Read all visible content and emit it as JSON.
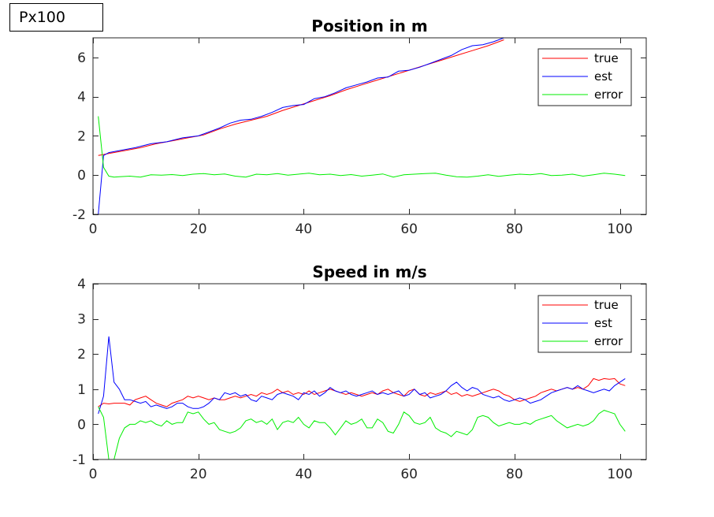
{
  "badge": "Px100",
  "colors": {
    "true": "#ff0000",
    "est": "#0000ff",
    "error": "#00ee00"
  },
  "chart_data": [
    {
      "type": "line",
      "title": "Position in m",
      "xlim": [
        0,
        105
      ],
      "ylim": [
        -2,
        7
      ],
      "xticks": [
        0,
        20,
        40,
        60,
        80,
        100
      ],
      "yticks": [
        -2,
        0,
        2,
        4,
        6
      ],
      "legend": "top-right",
      "series": [
        {
          "name": "true",
          "color": "#ff0000",
          "x": [
            1,
            3,
            6,
            9,
            12,
            15,
            18,
            21,
            24,
            27,
            30,
            33,
            36,
            39,
            42,
            45,
            48,
            51,
            54,
            57,
            60,
            63,
            66,
            69,
            72,
            75,
            78
          ],
          "y": [
            1.0,
            1.1,
            1.25,
            1.4,
            1.6,
            1.75,
            1.9,
            2.05,
            2.35,
            2.6,
            2.8,
            3.0,
            3.3,
            3.55,
            3.8,
            4.05,
            4.35,
            4.6,
            4.85,
            5.1,
            5.35,
            5.6,
            5.85,
            6.1,
            6.35,
            6.6,
            6.9
          ]
        },
        {
          "name": "est",
          "color": "#0000ff",
          "x": [
            1,
            2,
            3,
            5,
            8,
            11,
            14,
            17,
            20,
            22,
            24,
            26,
            28,
            30,
            32,
            34,
            36,
            38,
            40,
            42,
            44,
            46,
            48,
            50,
            52,
            54,
            56,
            58,
            60,
            62,
            64,
            66,
            68,
            70,
            72,
            74,
            76,
            78
          ],
          "y": [
            -2.0,
            1.0,
            1.15,
            1.25,
            1.4,
            1.6,
            1.7,
            1.9,
            2.0,
            2.2,
            2.4,
            2.65,
            2.8,
            2.85,
            3.0,
            3.2,
            3.45,
            3.55,
            3.6,
            3.9,
            4.0,
            4.2,
            4.45,
            4.6,
            4.75,
            4.95,
            5.0,
            5.3,
            5.35,
            5.5,
            5.7,
            5.9,
            6.1,
            6.4,
            6.6,
            6.65,
            6.8,
            7.0
          ]
        },
        {
          "name": "error",
          "color": "#00ee00",
          "x": [
            1,
            2,
            3,
            4,
            5,
            7,
            9,
            11,
            13,
            15,
            17,
            19,
            21,
            23,
            25,
            27,
            29,
            31,
            33,
            35,
            37,
            39,
            41,
            43,
            45,
            47,
            49,
            51,
            53,
            55,
            57,
            59,
            61,
            63,
            65,
            67,
            69,
            71,
            73,
            75,
            77,
            79,
            81,
            83,
            85,
            87,
            89,
            91,
            93,
            95,
            97,
            99,
            101
          ],
          "y": [
            3.0,
            0.4,
            -0.05,
            -0.1,
            -0.08,
            -0.05,
            -0.1,
            0.02,
            0.0,
            0.03,
            -0.02,
            0.05,
            0.08,
            0.02,
            0.06,
            -0.05,
            -0.1,
            0.05,
            0.02,
            0.08,
            0.0,
            0.05,
            0.1,
            0.02,
            0.05,
            -0.02,
            0.03,
            -0.05,
            0.0,
            0.06,
            -0.1,
            0.02,
            0.05,
            0.08,
            0.1,
            0.0,
            -0.08,
            -0.1,
            -0.05,
            0.02,
            -0.06,
            0.0,
            0.05,
            0.02,
            0.08,
            -0.02,
            0.0,
            0.05,
            -0.05,
            0.02,
            0.1,
            0.05,
            -0.02
          ]
        }
      ]
    },
    {
      "type": "line",
      "title": "Speed in m/s",
      "xlim": [
        0,
        105
      ],
      "ylim": [
        -1,
        4
      ],
      "xticks": [
        0,
        20,
        40,
        60,
        80,
        100
      ],
      "yticks": [
        -1,
        0,
        1,
        2,
        3,
        4
      ],
      "legend": "top-right",
      "series": [
        {
          "name": "true",
          "color": "#ff0000",
          "x": [
            1,
            2,
            3,
            4,
            5,
            6,
            7,
            8,
            9,
            10,
            11,
            12,
            13,
            14,
            15,
            16,
            17,
            18,
            19,
            20,
            21,
            22,
            23,
            24,
            25,
            26,
            27,
            28,
            29,
            30,
            31,
            32,
            33,
            34,
            35,
            36,
            37,
            38,
            39,
            40,
            41,
            42,
            43,
            44,
            45,
            46,
            47,
            48,
            49,
            50,
            51,
            52,
            53,
            54,
            55,
            56,
            57,
            58,
            59,
            60,
            61,
            62,
            63,
            64,
            65,
            66,
            67,
            68,
            69,
            70,
            71,
            72,
            73,
            74,
            75,
            76,
            77,
            78,
            79,
            80,
            81,
            82,
            83,
            84,
            85,
            86,
            87,
            88,
            89,
            90,
            91,
            92,
            93,
            94,
            95,
            96,
            97,
            98,
            99,
            100,
            101
          ],
          "y": [
            0.5,
            0.6,
            0.58,
            0.6,
            0.6,
            0.6,
            0.55,
            0.7,
            0.75,
            0.8,
            0.7,
            0.6,
            0.55,
            0.5,
            0.6,
            0.65,
            0.7,
            0.8,
            0.75,
            0.8,
            0.75,
            0.7,
            0.75,
            0.7,
            0.7,
            0.75,
            0.8,
            0.75,
            0.8,
            0.85,
            0.8,
            0.9,
            0.85,
            0.9,
            1.0,
            0.9,
            0.95,
            0.85,
            0.9,
            0.85,
            0.95,
            0.85,
            0.9,
            0.95,
            1.0,
            0.95,
            0.9,
            0.85,
            0.9,
            0.85,
            0.8,
            0.85,
            0.9,
            0.85,
            0.95,
            1.0,
            0.9,
            0.85,
            0.8,
            0.95,
            1.0,
            0.85,
            0.8,
            0.9,
            0.85,
            0.9,
            0.95,
            0.85,
            0.9,
            0.8,
            0.85,
            0.8,
            0.85,
            0.9,
            0.95,
            1.0,
            0.95,
            0.85,
            0.8,
            0.7,
            0.65,
            0.7,
            0.75,
            0.8,
            0.9,
            0.95,
            1.0,
            0.95,
            1.0,
            1.05,
            1.0,
            1.05,
            1.0,
            1.1,
            1.3,
            1.25,
            1.3,
            1.28,
            1.3,
            1.15,
            1.1
          ]
        },
        {
          "name": "est",
          "color": "#0000ff",
          "x": [
            1,
            2,
            3,
            4,
            5,
            6,
            7,
            8,
            9,
            10,
            11,
            12,
            13,
            14,
            15,
            16,
            17,
            18,
            19,
            20,
            21,
            22,
            23,
            24,
            25,
            26,
            27,
            28,
            29,
            30,
            31,
            32,
            33,
            34,
            35,
            36,
            37,
            38,
            39,
            40,
            41,
            42,
            43,
            44,
            45,
            46,
            47,
            48,
            49,
            50,
            51,
            52,
            53,
            54,
            55,
            56,
            57,
            58,
            59,
            60,
            61,
            62,
            63,
            64,
            65,
            66,
            67,
            68,
            69,
            70,
            71,
            72,
            73,
            74,
            75,
            76,
            77,
            78,
            79,
            80,
            81,
            82,
            83,
            84,
            85,
            86,
            87,
            88,
            89,
            90,
            91,
            92,
            93,
            94,
            95,
            96,
            97,
            98,
            99,
            100,
            101
          ],
          "y": [
            0.3,
            0.8,
            2.5,
            1.2,
            1.0,
            0.7,
            0.7,
            0.65,
            0.6,
            0.65,
            0.5,
            0.55,
            0.5,
            0.45,
            0.5,
            0.6,
            0.6,
            0.5,
            0.45,
            0.45,
            0.5,
            0.6,
            0.75,
            0.7,
            0.9,
            0.85,
            0.9,
            0.8,
            0.85,
            0.7,
            0.65,
            0.8,
            0.75,
            0.7,
            0.85,
            0.9,
            0.85,
            0.8,
            0.7,
            0.9,
            0.85,
            0.95,
            0.8,
            0.9,
            1.05,
            0.95,
            0.9,
            0.95,
            0.85,
            0.8,
            0.85,
            0.9,
            0.95,
            0.85,
            0.9,
            0.85,
            0.9,
            0.95,
            0.8,
            0.85,
            1.0,
            0.85,
            0.9,
            0.75,
            0.8,
            0.85,
            0.95,
            1.1,
            1.2,
            1.05,
            0.95,
            1.05,
            1.0,
            0.85,
            0.8,
            0.75,
            0.8,
            0.7,
            0.65,
            0.7,
            0.75,
            0.7,
            0.6,
            0.65,
            0.7,
            0.8,
            0.9,
            0.95,
            1.0,
            1.05,
            1.0,
            1.1,
            1.0,
            0.95,
            0.9,
            0.95,
            1.0,
            0.95,
            1.1,
            1.2,
            1.3
          ]
        },
        {
          "name": "error",
          "color": "#00ee00",
          "x": [
            1,
            2,
            3,
            4,
            5,
            6,
            7,
            8,
            9,
            10,
            11,
            12,
            13,
            14,
            15,
            16,
            17,
            18,
            19,
            20,
            21,
            22,
            23,
            24,
            25,
            26,
            27,
            28,
            29,
            30,
            31,
            32,
            33,
            34,
            35,
            36,
            37,
            38,
            39,
            40,
            41,
            42,
            43,
            44,
            45,
            46,
            47,
            48,
            49,
            50,
            51,
            52,
            53,
            54,
            55,
            56,
            57,
            58,
            59,
            60,
            61,
            62,
            63,
            64,
            65,
            66,
            67,
            68,
            69,
            70,
            71,
            72,
            73,
            74,
            75,
            76,
            77,
            78,
            79,
            80,
            81,
            82,
            83,
            84,
            85,
            86,
            87,
            88,
            89,
            90,
            91,
            92,
            93,
            94,
            95,
            96,
            97,
            98,
            99,
            100,
            101
          ],
          "y": [
            0.5,
            0.2,
            -1.0,
            -1.0,
            -0.4,
            -0.1,
            0.0,
            0.0,
            0.1,
            0.05,
            0.1,
            0.0,
            -0.05,
            0.1,
            0.0,
            0.05,
            0.05,
            0.35,
            0.3,
            0.35,
            0.15,
            0.0,
            0.05,
            -0.15,
            -0.2,
            -0.25,
            -0.2,
            -0.1,
            0.1,
            0.15,
            0.05,
            0.1,
            0.0,
            0.15,
            -0.15,
            0.05,
            0.1,
            0.05,
            0.2,
            0.0,
            -0.1,
            0.1,
            0.05,
            0.05,
            -0.1,
            -0.3,
            -0.1,
            0.1,
            0.0,
            0.05,
            0.15,
            -0.1,
            -0.1,
            0.15,
            0.05,
            -0.2,
            -0.25,
            0.0,
            0.35,
            0.25,
            0.05,
            0.0,
            0.05,
            0.2,
            -0.1,
            -0.2,
            -0.25,
            -0.35,
            -0.2,
            -0.25,
            -0.3,
            -0.15,
            0.2,
            0.25,
            0.2,
            0.05,
            -0.05,
            0.0,
            0.05,
            0.0,
            0.0,
            0.05,
            0.0,
            0.1,
            0.15,
            0.2,
            0.25,
            0.1,
            0.0,
            -0.1,
            -0.05,
            0.0,
            -0.05,
            0.0,
            0.1,
            0.3,
            0.4,
            0.35,
            0.3,
            0.0,
            -0.2
          ]
        }
      ]
    }
  ]
}
